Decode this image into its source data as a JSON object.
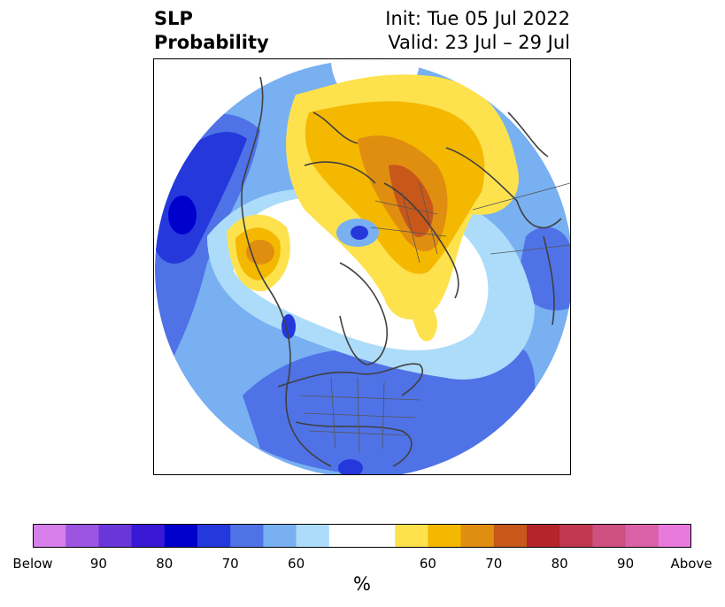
{
  "title": {
    "left_line1": "SLP",
    "left_line2": "Probability",
    "right_line1": "Init: Tue 05 Jul 2022",
    "right_line2": "Valid: 23 Jul – 29 Jul"
  },
  "colorbar": {
    "unit": "%",
    "colors": [
      "#d67fea",
      "#9b55e0",
      "#6a36d9",
      "#3a19d6",
      "#0000cc",
      "#2538dc",
      "#4f72e6",
      "#78b0f2",
      "#addcfa",
      "#ffffff",
      "#ffffff",
      "#fde24e",
      "#f4b800",
      "#e08e10",
      "#c8571a",
      "#b3252a",
      "#c03850",
      "#cc5080",
      "#da60a8",
      "#e87add"
    ],
    "labels": [
      "Below",
      "90",
      "80",
      "70",
      "60",
      "60",
      "70",
      "80",
      "90",
      "Above"
    ]
  },
  "palette": {
    "white": "#ffffff",
    "light_blue": "#addcfa",
    "sky_blue": "#78b0f2",
    "mid_blue": "#4f72e6",
    "strong_blue": "#2538dc",
    "deep_blue": "#0000cc",
    "yellow": "#fde24e",
    "gold": "#f4b800",
    "orange": "#e08e10",
    "dark_orange": "#c8571a",
    "coast_color": "#404040"
  }
}
